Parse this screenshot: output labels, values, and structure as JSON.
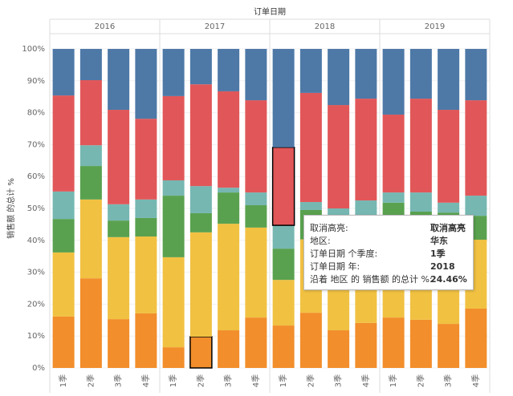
{
  "chart_data": {
    "type": "stacked_bar_100",
    "x_header": "订单日期",
    "y_label": "销售额 的总计 %",
    "x_groups": [
      "2016",
      "2017",
      "2018",
      "2019"
    ],
    "categories": [
      "1季",
      "2季",
      "3季",
      "4季",
      "1季",
      "2季",
      "3季",
      "4季",
      "1季",
      "2季",
      "3季",
      "4季",
      "1季",
      "2季",
      "3季",
      "4季"
    ],
    "series": [
      {
        "color": "#f28e2b",
        "values": [
          16.1,
          28.1,
          15.3,
          17.1,
          6.5,
          9.8,
          11.8,
          15.8,
          13.3,
          17.3,
          11.8,
          14.1,
          15.8,
          15.1,
          13.8,
          18.6
        ]
      },
      {
        "color": "#f1c142",
        "values": [
          20.1,
          24.7,
          25.7,
          24.1,
          28.2,
          32.7,
          33.4,
          28.2,
          14.3,
          23,
          26,
          25,
          28,
          28,
          29,
          21.6
        ]
      },
      {
        "color": "#59a14f",
        "values": [
          10.5,
          10.5,
          5.2,
          5.8,
          19.3,
          6.0,
          9.8,
          7.0,
          9.8,
          9.2,
          8,
          8,
          8,
          5.9,
          5.9,
          7.5
        ]
      },
      {
        "color": "#76b7b2",
        "values": [
          8.6,
          6.5,
          5.1,
          5.8,
          4.8,
          8.5,
          1.5,
          4.0,
          7.3,
          2.5,
          4.2,
          5.4,
          3.2,
          6,
          3.1,
          6.3
        ]
      },
      {
        "color": "#e15759",
        "values": [
          30.1,
          20.4,
          29.6,
          25.3,
          26.4,
          31.9,
          30.2,
          28.9,
          24.46,
          34.2,
          32.4,
          31.9,
          24.4,
          29.4,
          29.1,
          29.9
        ]
      },
      {
        "color": "#4e79a7",
        "values": [
          14.6,
          9.8,
          19.1,
          21.9,
          14.8,
          11.1,
          13.3,
          16.1,
          30.84,
          13.8,
          17.6,
          15.6,
          20.6,
          15.6,
          19.1,
          16.1
        ]
      }
    ],
    "ylim": [
      0,
      100
    ],
    "yticks": [
      {
        "value": 0,
        "label": "0%"
      },
      {
        "value": 10,
        "label": "10%"
      },
      {
        "value": 20,
        "label": "20%"
      },
      {
        "value": 30,
        "label": "30%"
      },
      {
        "value": 40,
        "label": "40%"
      },
      {
        "value": 50,
        "label": "50%"
      },
      {
        "value": 60,
        "label": "60%"
      },
      {
        "value": 70,
        "label": "70%"
      },
      {
        "value": 80,
        "label": "80%"
      },
      {
        "value": 90,
        "label": "90%"
      },
      {
        "value": 100,
        "label": "100%"
      }
    ],
    "grid": true
  },
  "tooltip": {
    "rows": [
      [
        "取消高亮:",
        "取消高亮"
      ],
      [
        "地区:",
        "华东"
      ],
      [
        "订单日期 个季度:",
        "1季"
      ],
      [
        "订单日期 年:",
        "2018"
      ],
      [
        "沿着 地区 的 销售额 的总计 %:",
        "24.46%"
      ]
    ]
  }
}
